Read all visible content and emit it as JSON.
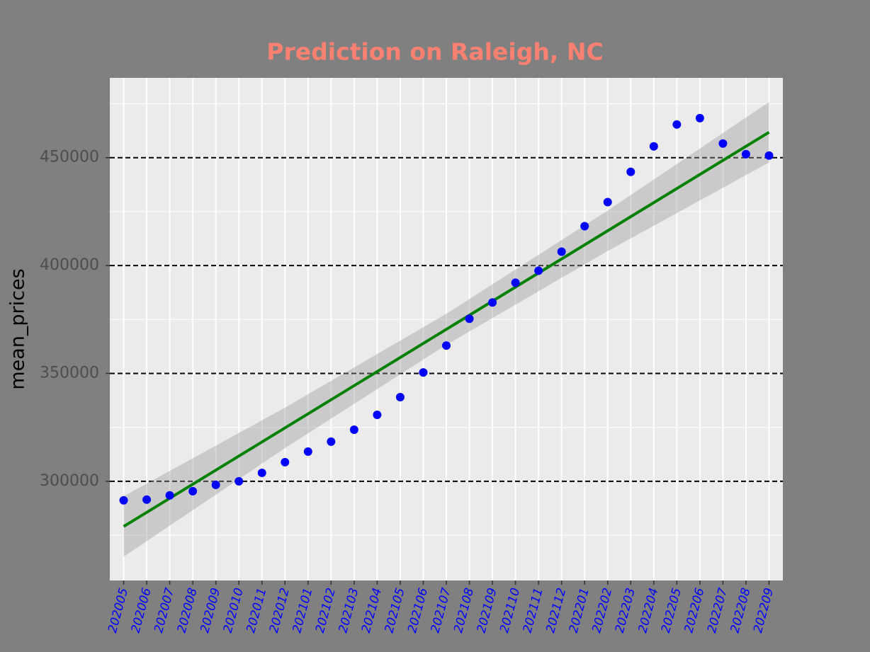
{
  "chart_data": {
    "type": "scatter",
    "title": "Prediction on Raleigh, NC",
    "y_label": "mean_prices",
    "categories": [
      "202005",
      "202006",
      "202007",
      "202008",
      "202009",
      "202010",
      "202011",
      "202012",
      "202101",
      "202102",
      "202103",
      "202104",
      "202105",
      "202106",
      "202107",
      "202108",
      "202109",
      "202110",
      "202111",
      "202112",
      "202201",
      "202202",
      "202203",
      "202204",
      "202205",
      "202206",
      "202207",
      "202208",
      "202209"
    ],
    "values": [
      291150,
      291500,
      293450,
      295400,
      298350,
      300000,
      303900,
      308850,
      313750,
      318350,
      323900,
      330800,
      339000,
      350450,
      362900,
      375350,
      382900,
      392050,
      397600,
      406450,
      418250,
      429400,
      443450,
      455250,
      465400,
      468350,
      456550,
      451650,
      451000
    ],
    "color": "#0000ff",
    "fit": {
      "color": "#008000",
      "band_color": "#999999",
      "x": [
        "202005",
        "202012",
        "202107",
        "202202",
        "202209"
      ],
      "values": [
        279050,
        324740,
        370430,
        416120,
        461800
      ],
      "lower": [
        265050,
        315370,
        363230,
        406750,
        447800
      ],
      "upper": [
        293050,
        334110,
        377630,
        425490,
        475800
      ]
    },
    "ylim": [
      254000,
      487000
    ],
    "yticks": [
      300000,
      350000,
      400000,
      450000
    ],
    "yminor": [
      275000,
      325000,
      375000,
      425000,
      475000
    ],
    "grid": true
  }
}
